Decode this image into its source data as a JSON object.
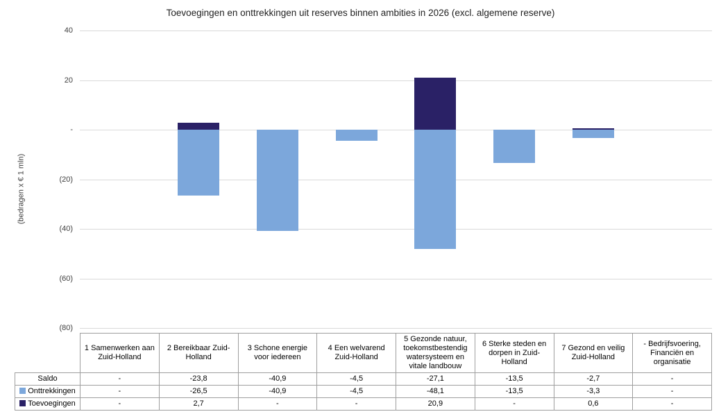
{
  "chart_data": {
    "type": "bar",
    "title": "Toevoegingen en onttrekkingen uit reserves binnen ambities in 2026 (excl. algemene reserve)",
    "ylabel": "(bedragen x € 1 mln)",
    "ylim": [
      -80,
      40
    ],
    "grid": true,
    "gridline_color": "#d9d9d9",
    "table_border_color": "#9e9e9e",
    "legend_position": "table-rows",
    "yticks": [
      {
        "value": 40,
        "label": "40"
      },
      {
        "value": 20,
        "label": "20"
      },
      {
        "value": 0,
        "label": "-"
      },
      {
        "value": -20,
        "label": "(20)"
      },
      {
        "value": -40,
        "label": "(40)"
      },
      {
        "value": -60,
        "label": "(60)"
      },
      {
        "value": -80,
        "label": "(80)"
      }
    ],
    "categories": [
      "1 Samenwerken aan Zuid-Holland",
      "2 Bereikbaar Zuid-Holland",
      "3 Schone energie voor iedereen",
      "4 Een welvarend Zuid-Holland",
      "5 Gezonde natuur, toekomstbestendig watersysteem en vitale landbouw",
      "6 Sterke steden en dorpen in Zuid-Holland",
      "7 Gezond en veilig Zuid-Holland",
      "- Bedrijfsvoering, Financiën en organisatie"
    ],
    "series": [
      {
        "name": "Saldo",
        "in_chart": false,
        "color": null,
        "values": [
          null,
          -23.8,
          -40.9,
          -4.5,
          -27.1,
          -13.5,
          -2.7,
          null
        ],
        "display": [
          "-",
          "-23,8",
          "-40,9",
          "-4,5",
          "-27,1",
          "-13,5",
          "-2,7",
          "-"
        ]
      },
      {
        "name": "Onttrekkingen",
        "in_chart": true,
        "color": "#7ca7db",
        "values": [
          null,
          -26.5,
          -40.9,
          -4.5,
          -48.1,
          -13.5,
          -3.3,
          null
        ],
        "display": [
          "-",
          "-26,5",
          "-40,9",
          "-4,5",
          "-48,1",
          "-13,5",
          "-3,3",
          "-"
        ]
      },
      {
        "name": "Toevoegingen",
        "in_chart": true,
        "color": "#2a2166",
        "values": [
          null,
          2.7,
          null,
          null,
          20.9,
          null,
          0.6,
          null
        ],
        "display": [
          "-",
          "2,7",
          "-",
          "-",
          "20,9",
          "-",
          "0,6",
          "-"
        ]
      }
    ]
  }
}
